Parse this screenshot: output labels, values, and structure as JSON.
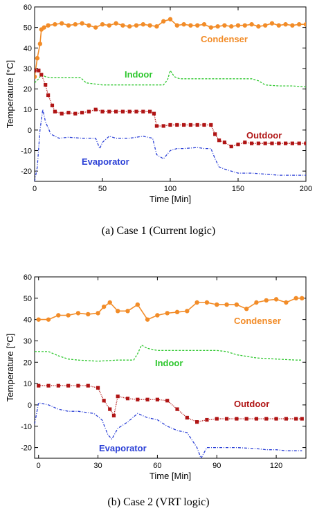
{
  "chart_data": [
    {
      "type": "line",
      "caption": "(a)  Case  1  (Current  logic)",
      "xlabel": "Time [Min]",
      "ylabel": "Temperature [°C]",
      "xlim": [
        0,
        200
      ],
      "ylim": [
        -25,
        60
      ],
      "xticks": [
        0,
        50,
        100,
        150,
        200
      ],
      "yticks": [
        -20,
        -10,
        0,
        10,
        20,
        30,
        40,
        50,
        60
      ],
      "grid": false,
      "series": [
        {
          "name": "Condenser",
          "color": "#f28c28",
          "style": "solid",
          "marker": "circle",
          "x": [
            0,
            2,
            4,
            5,
            7,
            10,
            15,
            20,
            25,
            30,
            35,
            40,
            45,
            50,
            55,
            60,
            65,
            70,
            75,
            80,
            85,
            90,
            95,
            100,
            105,
            110,
            115,
            120,
            125,
            130,
            135,
            140,
            145,
            150,
            155,
            160,
            165,
            170,
            175,
            180,
            185,
            190,
            195,
            200
          ],
          "y": [
            26,
            35,
            42,
            49,
            50,
            51,
            51.5,
            52,
            51,
            51.5,
            52,
            51,
            50,
            51.5,
            51,
            52,
            51,
            50.5,
            51,
            51.5,
            51,
            50.5,
            53,
            54,
            51,
            51.5,
            51,
            51,
            51.5,
            50,
            50.5,
            51,
            50.5,
            51,
            51,
            51.5,
            50.5,
            51,
            52,
            51,
            51.5,
            51,
            51.5,
            51.5
          ]
        },
        {
          "name": "Indoor",
          "color": "#2ec72e",
          "style": "dashed",
          "marker": "none",
          "x": [
            0,
            3,
            5,
            8,
            12,
            20,
            30,
            34,
            38,
            50,
            60,
            70,
            80,
            90,
            95,
            98,
            100,
            103,
            107,
            115,
            130,
            150,
            160,
            165,
            170,
            180,
            190,
            200
          ],
          "y": [
            23,
            25,
            27,
            26,
            25.5,
            25.5,
            25.5,
            25.5,
            23,
            22,
            22,
            22,
            22,
            22,
            22,
            24.5,
            29,
            26,
            25,
            25,
            25,
            25,
            25,
            24,
            22,
            21.5,
            21.5,
            21
          ]
        },
        {
          "name": "Outdoor",
          "color": "#b01515",
          "style": "dotted",
          "marker": "square",
          "x": [
            0,
            3,
            5,
            8,
            10,
            13,
            15,
            20,
            25,
            30,
            35,
            40,
            45,
            50,
            55,
            60,
            65,
            70,
            75,
            80,
            85,
            88,
            90,
            95,
            100,
            105,
            110,
            115,
            120,
            125,
            130,
            133,
            136,
            140,
            145,
            150,
            155,
            160,
            165,
            170,
            175,
            180,
            185,
            190,
            195,
            200
          ],
          "y": [
            29,
            29,
            27,
            22,
            17,
            12,
            9,
            8,
            8.5,
            8,
            8.5,
            9,
            10,
            9,
            9,
            9,
            9,
            9,
            9,
            9,
            9,
            8,
            2,
            2,
            2.5,
            2.5,
            2.5,
            2.5,
            2.5,
            2.5,
            2.5,
            -2,
            -5,
            -6,
            -8,
            -7,
            -6,
            -6.5,
            -6.5,
            -6.5,
            -6.5,
            -6.5,
            -6.5,
            -6.5,
            -6.5,
            -6.5
          ]
        },
        {
          "name": "Evaporator",
          "color": "#2a3fd6",
          "style": "dashdot",
          "marker": "none",
          "x": [
            0,
            2,
            4,
            6,
            8,
            12,
            18,
            25,
            35,
            45,
            48,
            50,
            55,
            60,
            70,
            80,
            87,
            90,
            95,
            100,
            105,
            110,
            120,
            125,
            130,
            133,
            136,
            140,
            145,
            150,
            160,
            170,
            180,
            190,
            195,
            200
          ],
          "y": [
            -25,
            -18,
            0,
            10,
            4,
            -2,
            -4,
            -3.5,
            -4,
            -4,
            -9,
            -6,
            -3,
            -4,
            -4,
            -3,
            -4,
            -12,
            -14,
            -10,
            -9,
            -9,
            -8.5,
            -9,
            -9,
            -14,
            -18,
            -19,
            -20,
            -21,
            -21,
            -21.5,
            -22,
            -22,
            -22,
            -22
          ]
        }
      ]
    },
    {
      "type": "line",
      "caption": "(b)  Case  2  (VRT  logic)",
      "xlabel": "Time [Min]",
      "ylabel": "Temperature [°C]",
      "xlim": [
        -2,
        135
      ],
      "ylim": [
        -25,
        60
      ],
      "xticks": [
        0,
        30,
        60,
        90,
        120
      ],
      "yticks": [
        -20,
        -10,
        0,
        10,
        20,
        30,
        40,
        50,
        60
      ],
      "grid": false,
      "series": [
        {
          "name": "Condenser",
          "color": "#f28c28",
          "style": "solid",
          "marker": "circle",
          "x": [
            0,
            5,
            10,
            15,
            20,
            25,
            30,
            33,
            36,
            40,
            45,
            50,
            55,
            60,
            65,
            70,
            75,
            80,
            85,
            90,
            95,
            100,
            105,
            110,
            115,
            120,
            125,
            130,
            133
          ],
          "y": [
            40,
            40,
            42,
            42,
            43,
            42.5,
            43,
            46,
            48,
            44,
            44,
            47,
            40,
            42,
            43,
            43.5,
            44,
            48,
            48,
            47,
            47,
            47,
            45,
            48,
            49,
            49.5,
            48,
            50,
            50
          ]
        },
        {
          "name": "Indoor",
          "color": "#2ec72e",
          "style": "dashed",
          "marker": "none",
          "x": [
            -2,
            0,
            5,
            10,
            15,
            20,
            30,
            40,
            48,
            50,
            52,
            55,
            60,
            70,
            80,
            90,
            95,
            100,
            110,
            120,
            130,
            133
          ],
          "y": [
            25,
            25,
            25,
            23,
            21.5,
            21,
            20.5,
            21,
            21,
            24,
            28,
            26.5,
            25.5,
            25.5,
            25.5,
            25.5,
            25,
            23.5,
            22,
            21.5,
            21,
            21
          ]
        },
        {
          "name": "Outdoor",
          "color": "#b01515",
          "style": "dotted",
          "marker": "square",
          "x": [
            0,
            5,
            10,
            15,
            20,
            25,
            30,
            33,
            36,
            38,
            40,
            45,
            50,
            55,
            60,
            65,
            70,
            75,
            80,
            85,
            90,
            95,
            100,
            105,
            110,
            115,
            120,
            125,
            130,
            133
          ],
          "y": [
            9,
            9,
            9,
            9,
            9,
            9,
            8,
            2,
            -2,
            -5,
            4,
            3,
            2.5,
            2.5,
            2.5,
            2,
            -2,
            -6,
            -8,
            -7,
            -6.5,
            -6.5,
            -6.5,
            -6.5,
            -6.5,
            -6.5,
            -6.5,
            -6.5,
            -6.5,
            -6.5
          ]
        },
        {
          "name": "Evaporator",
          "color": "#2a3fd6",
          "style": "dashdot",
          "marker": "none",
          "x": [
            -2,
            0,
            5,
            10,
            15,
            20,
            28,
            32,
            35,
            37,
            40,
            45,
            50,
            55,
            60,
            65,
            70,
            75,
            80,
            82,
            85,
            90,
            100,
            110,
            115,
            120,
            125,
            130,
            133
          ],
          "y": [
            -9,
            1,
            0,
            -2,
            -3,
            -3,
            -4,
            -7,
            -14,
            -16,
            -11,
            -8,
            -4,
            -6,
            -7,
            -10,
            -12,
            -13,
            -20,
            -25,
            -20,
            -20,
            -20,
            -20.5,
            -21,
            -21,
            -21.5,
            -21.5,
            -21.5
          ]
        }
      ]
    }
  ]
}
